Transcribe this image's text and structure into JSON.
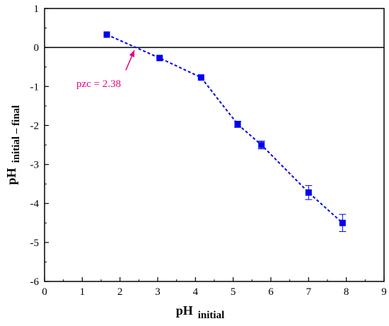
{
  "chart_data": {
    "type": "scatter",
    "xlim": [
      0,
      9
    ],
    "ylim": [
      -6,
      1
    ],
    "xticks": [
      0,
      1,
      2,
      3,
      4,
      5,
      6,
      7,
      8,
      9
    ],
    "yticks": [
      -6,
      -5,
      -4,
      -3,
      -2,
      -1,
      0,
      1
    ],
    "xlabel": {
      "main": "pH",
      "sub": "initial"
    },
    "ylabel": {
      "main": "pH",
      "sub": "initial – final"
    },
    "reference_line_y": 0,
    "grid": false,
    "series": [
      {
        "x": [
          1.65,
          3.05,
          4.15,
          5.12,
          5.75,
          7.0,
          7.9
        ],
        "y": [
          0.33,
          -0.27,
          -0.77,
          -1.97,
          -2.5,
          -3.72,
          -4.5
        ],
        "yerr": [
          0.0,
          0.0,
          0.0,
          0.08,
          0.1,
          0.18,
          0.22
        ],
        "line_style": "dashed",
        "marker": "square"
      }
    ],
    "annotation": {
      "text": "pzc = 2.38",
      "x": 2.38,
      "y": 0
    },
    "colors": {
      "series": "#0000ee",
      "annotation": "#e6007e",
      "axes": "#000000"
    }
  }
}
